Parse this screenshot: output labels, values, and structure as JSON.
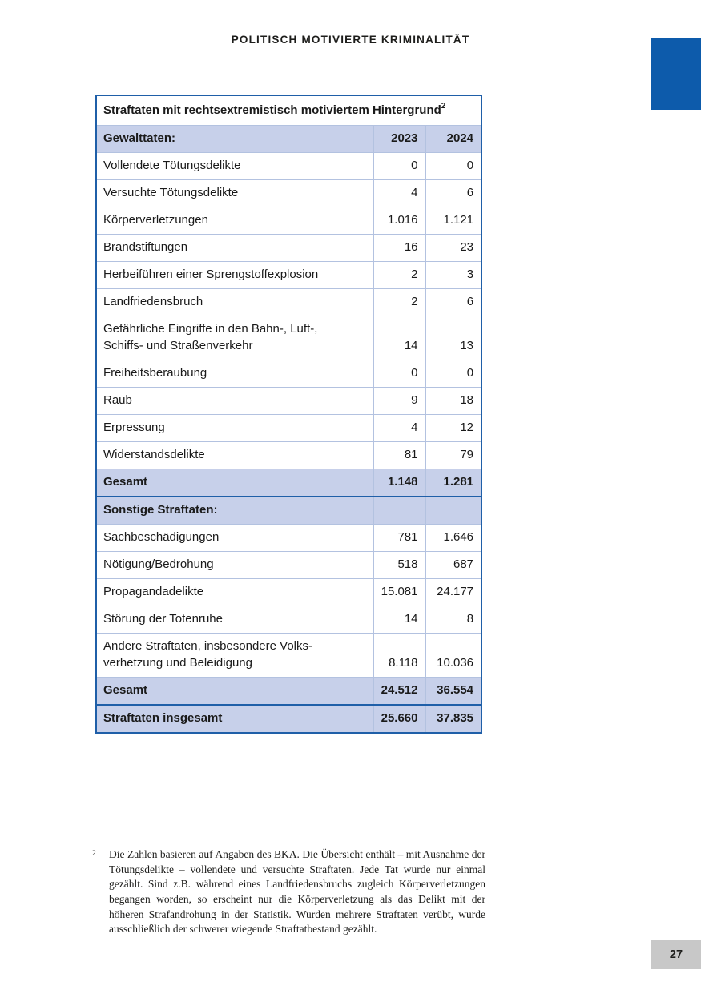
{
  "page": {
    "header": "POLITISCH MOTIVIERTE KRIMINALITÄT",
    "page_number": "27"
  },
  "colors": {
    "accent_blue": "#0d5bab",
    "table_border": "#1f5fa8",
    "row_shade": "#c7d0ea",
    "divider": "#b3c2e0",
    "page_box_gray": "#c8c8c8",
    "text": "#1a1a1a"
  },
  "table": {
    "title": "Straftaten mit rechtsextremistisch motiviertem Hintergrund",
    "title_footnote_marker": "2",
    "header_row": {
      "label": "Gewalttaten:",
      "col1": "2023",
      "col2": "2024"
    },
    "rows": [
      {
        "label": "Vollendete Tötungsdelikte",
        "y2023": "0",
        "y2024": "0",
        "style": "data"
      },
      {
        "label": "Versuchte Tötungsdelikte",
        "y2023": "4",
        "y2024": "6",
        "style": "data"
      },
      {
        "label": "Körperverletzungen",
        "y2023": "1.016",
        "y2024": "1.121",
        "style": "data"
      },
      {
        "label": "Brandstiftungen",
        "y2023": "16",
        "y2024": "23",
        "style": "data"
      },
      {
        "label": "Herbeiführen einer Sprengstoffexplosion",
        "y2023": "2",
        "y2024": "3",
        "style": "data"
      },
      {
        "label": "Landfriedensbruch",
        "y2023": "2",
        "y2024": "6",
        "style": "data"
      },
      {
        "label": "Gefährliche Eingriffe in den Bahn-, Luft-,\nSchiffs- und Straßenverkehr",
        "y2023": "14",
        "y2024": "13",
        "style": "data"
      },
      {
        "label": "Freiheitsberaubung",
        "y2023": "0",
        "y2024": "0",
        "style": "data"
      },
      {
        "label": "Raub",
        "y2023": "9",
        "y2024": "18",
        "style": "data"
      },
      {
        "label": "Erpressung",
        "y2023": "4",
        "y2024": "12",
        "style": "data"
      },
      {
        "label": "Widerstandsdelikte",
        "y2023": "81",
        "y2024": "79",
        "style": "data"
      },
      {
        "label": "Gesamt",
        "y2023": "1.148",
        "y2024": "1.281",
        "style": "total"
      },
      {
        "label": "Sonstige Straftaten:",
        "y2023": "",
        "y2024": "",
        "style": "section"
      },
      {
        "label": "Sachbeschädigungen",
        "y2023": "781",
        "y2024": "1.646",
        "style": "data"
      },
      {
        "label": "Nötigung/Bedrohung",
        "y2023": "518",
        "y2024": "687",
        "style": "data"
      },
      {
        "label": "Propagandadelikte",
        "y2023": "15.081",
        "y2024": "24.177",
        "style": "data"
      },
      {
        "label": "Störung der Totenruhe",
        "y2023": "14",
        "y2024": "8",
        "style": "data"
      },
      {
        "label": "Andere Straftaten, insbesondere Volks-\nverhetzung und Beleidigung",
        "y2023": "8.118",
        "y2024": "10.036",
        "style": "data"
      },
      {
        "label": "Gesamt",
        "y2023": "24.512",
        "y2024": "36.554",
        "style": "total"
      },
      {
        "label": "Straftaten insgesamt",
        "y2023": "25.660",
        "y2024": "37.835",
        "style": "grand"
      }
    ]
  },
  "footnote": {
    "marker": "2",
    "text": "Die Zahlen basieren auf Angaben des BKA. Die Übersicht enthält – mit Ausnahme der Tötungsdelikte – vollendete und versuchte Straftaten. Jede Tat wurde nur einmal gezählt. Sind z.B. während eines Landfriedensbruchs zugleich Körperverletzungen begangen worden, so erscheint nur die Körperverletzung als das Delikt mit der höheren Strafandrohung in der Statistik. Wurden mehrere Straftaten verübt, wurde ausschließlich der schwerer wiegende Straftatbestand gezählt."
  }
}
